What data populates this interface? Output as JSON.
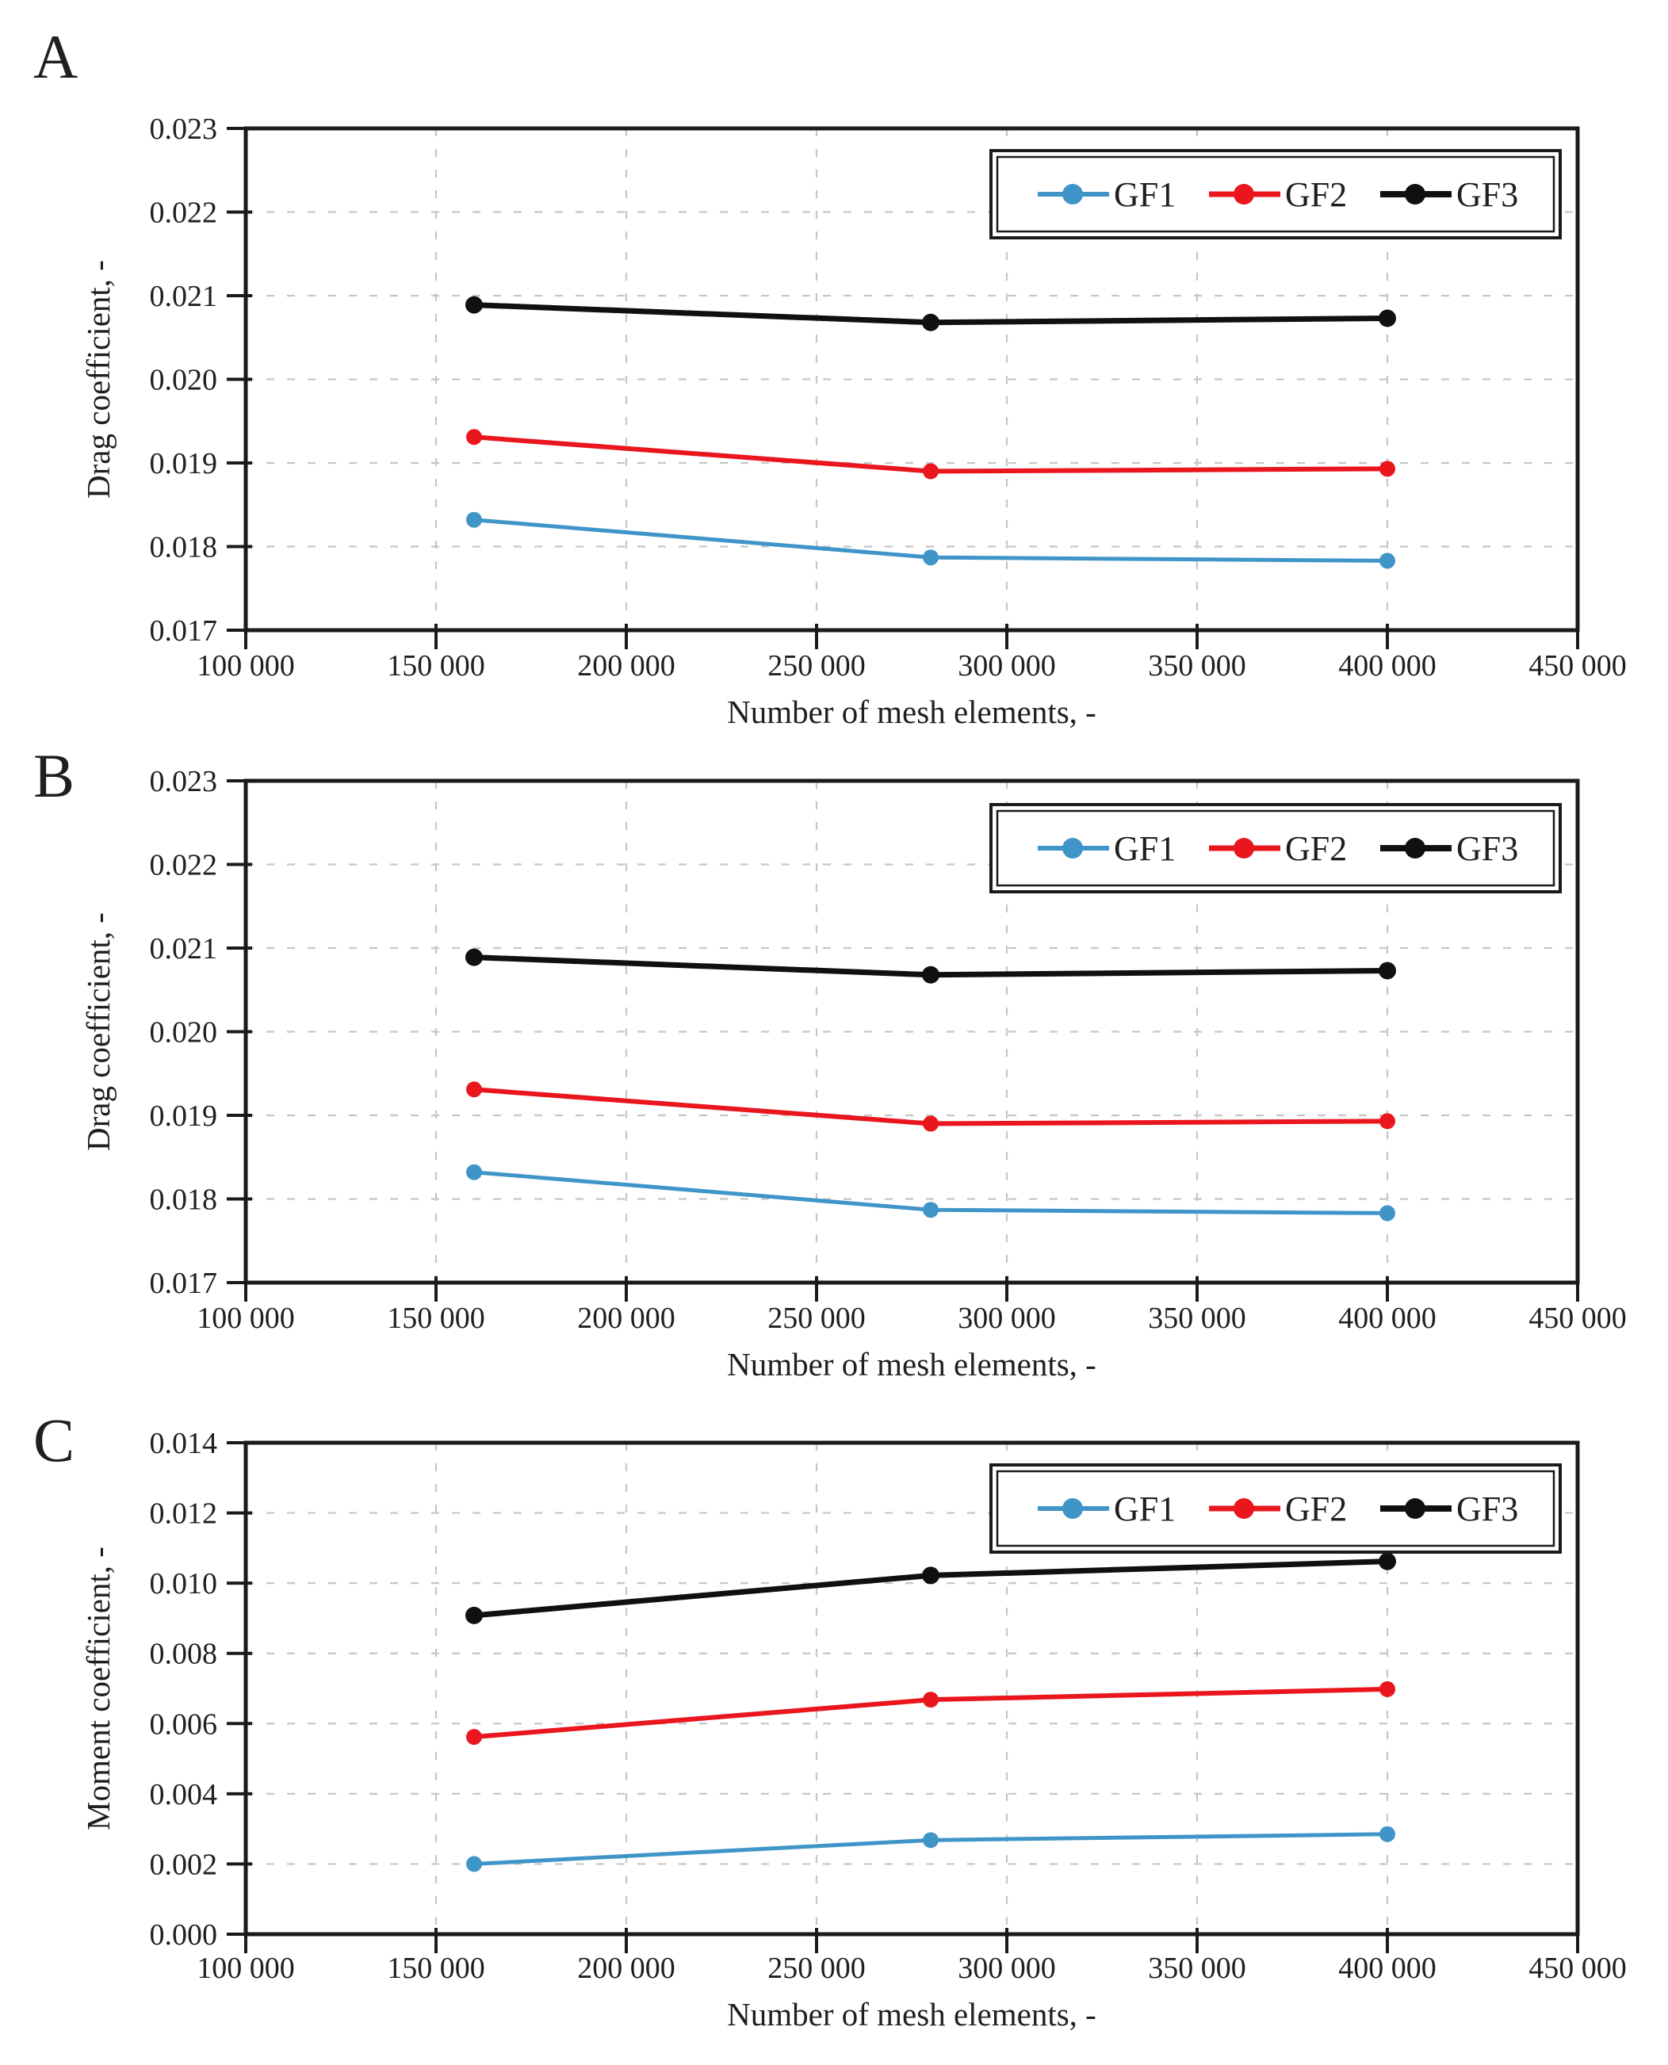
{
  "figure": {
    "description_colors": {
      "gf1_blue": "#4095C8",
      "gf2_red": "#E9161E",
      "gf3_black": "#101010",
      "grid": "#c6c6c6",
      "axis": "#1a1a1a",
      "text": "#1f1f1f",
      "legend_border": "#1a1a1a",
      "background": "#ffffff"
    }
  },
  "chart_data": [
    {
      "panel_label": "A",
      "type": "line",
      "x": [
        160000,
        280000,
        400000
      ],
      "series": [
        {
          "name": "GF1",
          "color": "#4095C8",
          "values": [
            0.01832,
            0.01787,
            0.01783
          ]
        },
        {
          "name": "GF2",
          "color": "#E9161E",
          "values": [
            0.01931,
            0.0189,
            0.01893
          ]
        },
        {
          "name": "GF3",
          "color": "#101010",
          "values": [
            0.02089,
            0.02068,
            0.02073
          ]
        }
      ],
      "title": "",
      "xlabel": "Number of mesh elements, -",
      "ylabel": "Drag coefficient, -",
      "xlim": [
        100000,
        450000
      ],
      "xstep": 50000,
      "ylim": [
        0.017,
        0.023
      ],
      "ystep": 0.001,
      "x_tick_labels": [
        "100 000",
        "150 000",
        "200 000",
        "250 000",
        "300 000",
        "350 000",
        "400 000",
        "450 000"
      ],
      "y_tick_labels": [
        "0.017",
        "0.018",
        "0.019",
        "0.020",
        "0.021",
        "0.022",
        "0.023"
      ],
      "grid": true,
      "legend_position": "top-right",
      "legend_entries": [
        "GF1",
        "GF2",
        "GF3"
      ]
    },
    {
      "panel_label": "B",
      "type": "line",
      "x": [
        160000,
        280000,
        400000
      ],
      "series": [
        {
          "name": "GF1",
          "color": "#4095C8",
          "values": [
            0.01832,
            0.01787,
            0.01783
          ]
        },
        {
          "name": "GF2",
          "color": "#E9161E",
          "values": [
            0.01931,
            0.0189,
            0.01893
          ]
        },
        {
          "name": "GF3",
          "color": "#101010",
          "values": [
            0.02089,
            0.02068,
            0.02073
          ]
        }
      ],
      "title": "",
      "xlabel": "Number of mesh elements, -",
      "ylabel": "Drag coefficient, -",
      "xlim": [
        100000,
        450000
      ],
      "xstep": 50000,
      "ylim": [
        0.017,
        0.023
      ],
      "ystep": 0.001,
      "x_tick_labels": [
        "100 000",
        "150 000",
        "200 000",
        "250 000",
        "300 000",
        "350 000",
        "400 000",
        "450 000"
      ],
      "y_tick_labels": [
        "0.017",
        "0.018",
        "0.019",
        "0.020",
        "0.021",
        "0.022",
        "0.023"
      ],
      "grid": true,
      "legend_position": "top-right",
      "legend_entries": [
        "GF1",
        "GF2",
        "GF3"
      ]
    },
    {
      "panel_label": "C",
      "type": "line",
      "x": [
        160000,
        280000,
        400000
      ],
      "series": [
        {
          "name": "GF1",
          "color": "#4095C8",
          "values": [
            0.002,
            0.00268,
            0.00285
          ]
        },
        {
          "name": "GF2",
          "color": "#E9161E",
          "values": [
            0.00562,
            0.00668,
            0.00698
          ]
        },
        {
          "name": "GF3",
          "color": "#101010",
          "values": [
            0.00908,
            0.01022,
            0.01062
          ]
        }
      ],
      "title": "",
      "xlabel": "Number of mesh elements, -",
      "ylabel": "Moment coefficient, -",
      "xlim": [
        100000,
        450000
      ],
      "xstep": 50000,
      "ylim": [
        0.0,
        0.014
      ],
      "ystep": 0.002,
      "x_tick_labels": [
        "100 000",
        "150 000",
        "200 000",
        "250 000",
        "300 000",
        "350 000",
        "400 000",
        "450 000"
      ],
      "y_tick_labels": [
        "0.000",
        "0.002",
        "0.004",
        "0.006",
        "0.008",
        "0.010",
        "0.012",
        "0.014"
      ],
      "grid": true,
      "legend_position": "top-right",
      "legend_entries": [
        "GF1",
        "GF2",
        "GF3"
      ]
    }
  ]
}
